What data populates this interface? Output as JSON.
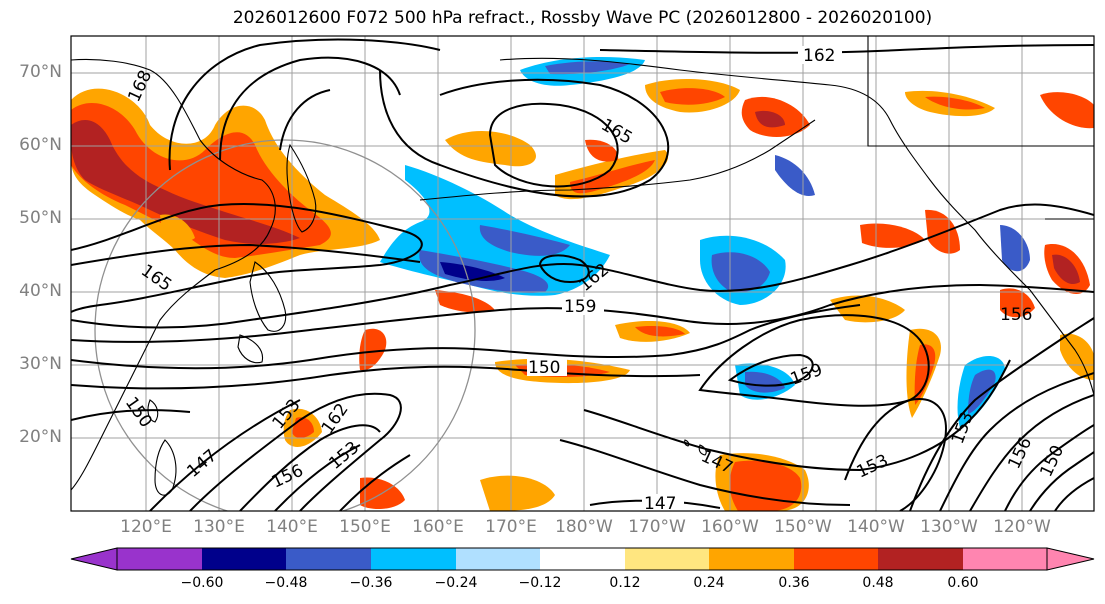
{
  "title": "2026012600 F072 500 hPa refract., Rossby Wave PC (2026012800 - 2026020100)",
  "lat_labels": [
    "70°N",
    "60°N",
    "50°N",
    "40°N",
    "30°N",
    "20°N"
  ],
  "lon_labels": [
    "120°E",
    "130°E",
    "140°E",
    "150°E",
    "160°E",
    "170°E",
    "180°W",
    "170°W",
    "160°W",
    "150°W",
    "140°W",
    "130°W",
    "120°W"
  ],
  "colorbar": {
    "ticks": [
      "−0.60",
      "−0.48",
      "−0.36",
      "−0.24",
      "−0.12",
      "0.12",
      "0.24",
      "0.36",
      "0.48",
      "0.60"
    ],
    "colors": [
      "#9933cc",
      "#00008b",
      "#3a5bc8",
      "#00bfff",
      "#b0e0ff",
      "#ffffff",
      "#ffe680",
      "#ffa500",
      "#ff4500",
      "#b22222",
      "#ff85b0"
    ]
  },
  "contour_labels": [
    "162",
    "165",
    "168",
    "165",
    "162",
    "159",
    "150",
    "156",
    "159",
    "147",
    "153",
    "156",
    "153",
    "162",
    "147",
    "150",
    "147",
    "153",
    "153",
    "156",
    "150"
  ],
  "colors": {
    "land": "#000000",
    "grid": "#a0a0a0",
    "label": "#808080"
  }
}
